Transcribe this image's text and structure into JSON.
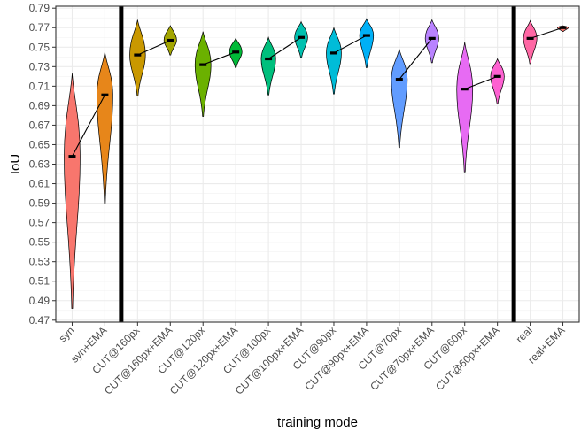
{
  "chart_data": {
    "type": "violin",
    "xlabel": "training mode",
    "ylabel": "IoU",
    "ylim": [
      0.468,
      0.792
    ],
    "yticks": [
      "0.47",
      "0.49",
      "0.51",
      "0.53",
      "0.55",
      "0.57",
      "0.59",
      "0.61",
      "0.63",
      "0.65",
      "0.67",
      "0.69",
      "0.71",
      "0.73",
      "0.75",
      "0.77",
      "0.79"
    ],
    "grid": true,
    "categories": [
      "syn",
      "syn+EMA",
      "CUT@160px",
      "CUT@160px+EMA",
      "CUT@120px",
      "CUT@120px+EMA",
      "CUT@100px",
      "CUT@100px+EMA",
      "CUT@90px",
      "CUT@90px+EMA",
      "CUT@70px",
      "CUT@70px+EMA",
      "CUT@60px",
      "CUT@60px+EMA",
      "real",
      "real+EMA"
    ],
    "series": [
      {
        "category": "syn",
        "color": "#F8766D",
        "min": 0.482,
        "max": 0.723,
        "median": 0.638
      },
      {
        "category": "syn+EMA",
        "color": "#E7861A",
        "min": 0.59,
        "max": 0.745,
        "median": 0.701
      },
      {
        "category": "CUT@160px",
        "color": "#C99800",
        "min": 0.7,
        "max": 0.778,
        "median": 0.742
      },
      {
        "category": "CUT@160px+EMA",
        "color": "#A3A500",
        "min": 0.742,
        "max": 0.772,
        "median": 0.757
      },
      {
        "category": "CUT@120px",
        "color": "#6BB100",
        "min": 0.679,
        "max": 0.766,
        "median": 0.732
      },
      {
        "category": "CUT@120px+EMA",
        "color": "#00BA38",
        "min": 0.729,
        "max": 0.759,
        "median": 0.745
      },
      {
        "category": "CUT@100px",
        "color": "#00BF7D",
        "min": 0.701,
        "max": 0.76,
        "median": 0.738
      },
      {
        "category": "CUT@100px+EMA",
        "color": "#00C0AF",
        "min": 0.739,
        "max": 0.776,
        "median": 0.76
      },
      {
        "category": "CUT@90px",
        "color": "#00BCD8",
        "min": 0.702,
        "max": 0.77,
        "median": 0.744
      },
      {
        "category": "CUT@90px+EMA",
        "color": "#00B0F6",
        "min": 0.729,
        "max": 0.779,
        "median": 0.762
      },
      {
        "category": "CUT@70px",
        "color": "#619CFF",
        "min": 0.647,
        "max": 0.748,
        "median": 0.717
      },
      {
        "category": "CUT@70px+EMA",
        "color": "#B983FF",
        "min": 0.734,
        "max": 0.778,
        "median": 0.759
      },
      {
        "category": "CUT@60px",
        "color": "#E76BF3",
        "min": 0.622,
        "max": 0.755,
        "median": 0.707
      },
      {
        "category": "CUT@60px+EMA",
        "color": "#FD61D1",
        "min": 0.692,
        "max": 0.738,
        "median": 0.72
      },
      {
        "category": "real",
        "color": "#FF67A4",
        "min": 0.733,
        "max": 0.777,
        "median": 0.759
      },
      {
        "category": "real+EMA",
        "color": "#F8766D",
        "min": 0.766,
        "max": 0.772,
        "median": 0.77
      }
    ],
    "separator_after": [
      "syn+EMA",
      "CUT@60px+EMA"
    ],
    "connected_pairs": [
      [
        0,
        1
      ],
      [
        2,
        3
      ],
      [
        4,
        5
      ],
      [
        6,
        7
      ],
      [
        8,
        9
      ],
      [
        10,
        11
      ],
      [
        12,
        13
      ],
      [
        14,
        15
      ]
    ]
  }
}
